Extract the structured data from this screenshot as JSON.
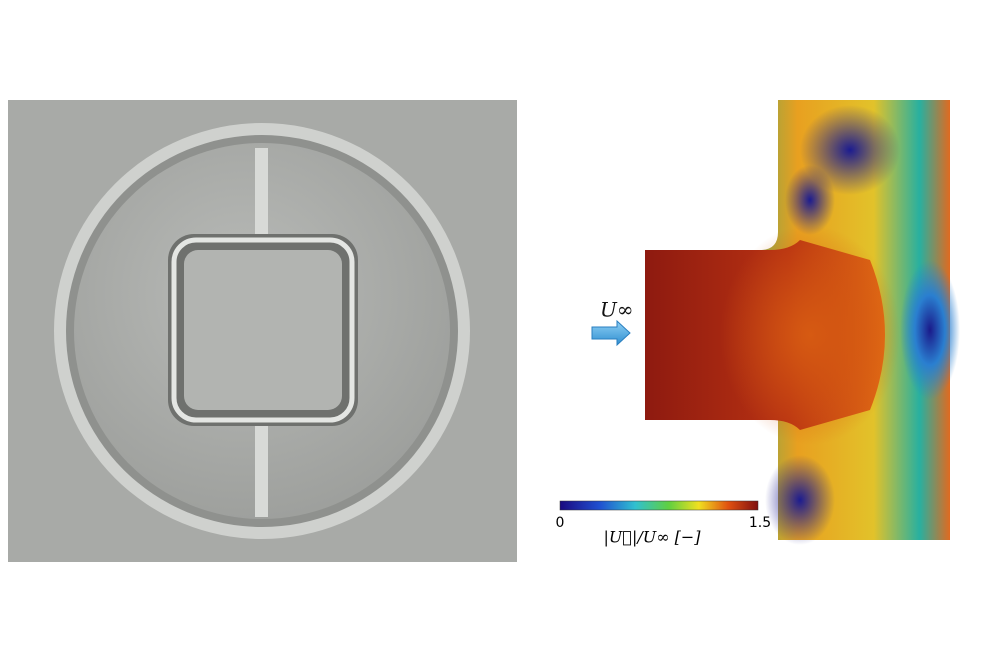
{
  "flow": {
    "label": "U∞"
  },
  "colorbar": {
    "min": "0",
    "max": "1.5",
    "label": "|U⃗|/U∞ [−]"
  }
}
